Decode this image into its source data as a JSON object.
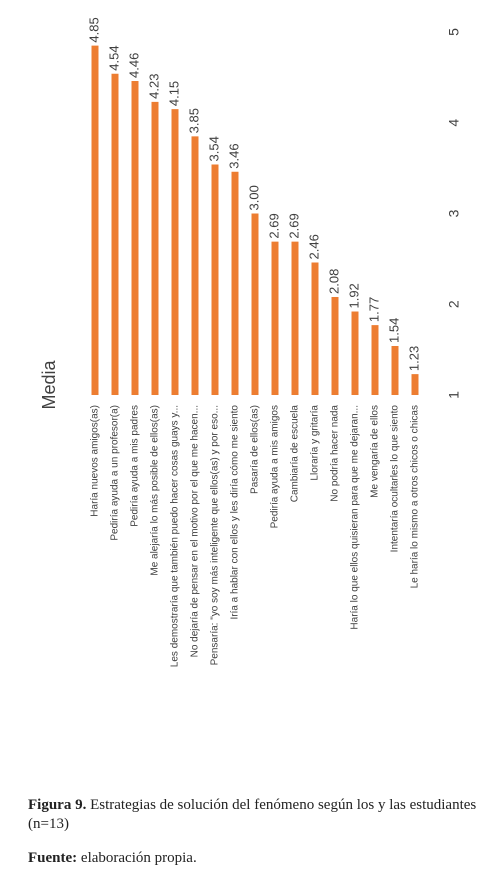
{
  "chart_data": {
    "type": "bar",
    "y_label": "Media",
    "categories": [
      "Haría nuevos amigos(as)",
      "Pediría ayuda a un profesor(a)",
      "Pediría ayuda a mis padres",
      "Me alejaría lo más posible de ellos(as)",
      "Les demostraría que también puedo hacer cosas guays y...",
      "No dejaría de pensar en el motivo por el que me hacen...",
      "Pensaría: \"yo soy más inteligente que ellos(as) y por eso...",
      "Iría a hablar con ellos y les diría cómo me siento",
      "Pasaría de ellos(as)",
      "Pediría ayuda a mis amigos",
      "Cambiaría de escuela",
      "Lloraría y gritaría",
      "No podría hacer nada",
      "Haría lo que ellos quisieran para que me dejaran...",
      "Me vengaría de ellos",
      "Intentaría ocultarles lo que siento",
      "Le haría lo mismo a otros chicos o chicas"
    ],
    "values": [
      4.85,
      4.54,
      4.46,
      4.23,
      4.15,
      3.85,
      3.54,
      3.46,
      3.0,
      2.69,
      2.69,
      2.46,
      2.08,
      1.92,
      1.77,
      1.54,
      1.23
    ],
    "value_labels": [
      "4.85",
      "4.54",
      "4.46",
      "4.23",
      "4.15",
      "3.85",
      "3.54",
      "3.46",
      "3.00",
      "2.69",
      "2.69",
      "2.46",
      "2.08",
      "1.92",
      "1.77",
      "1.54",
      "1.23"
    ],
    "color": "#ed7d31",
    "ylim": [
      1,
      5
    ],
    "yticks": [
      1,
      2,
      3,
      4,
      5
    ],
    "grid": false
  },
  "caption": {
    "figure_label": "Figura 9.",
    "text": "Estrategias de solución del fenómeno según los y las estudiantes (n=13)",
    "source_label": "Fuente:",
    "source_text": "elaboración propia."
  }
}
